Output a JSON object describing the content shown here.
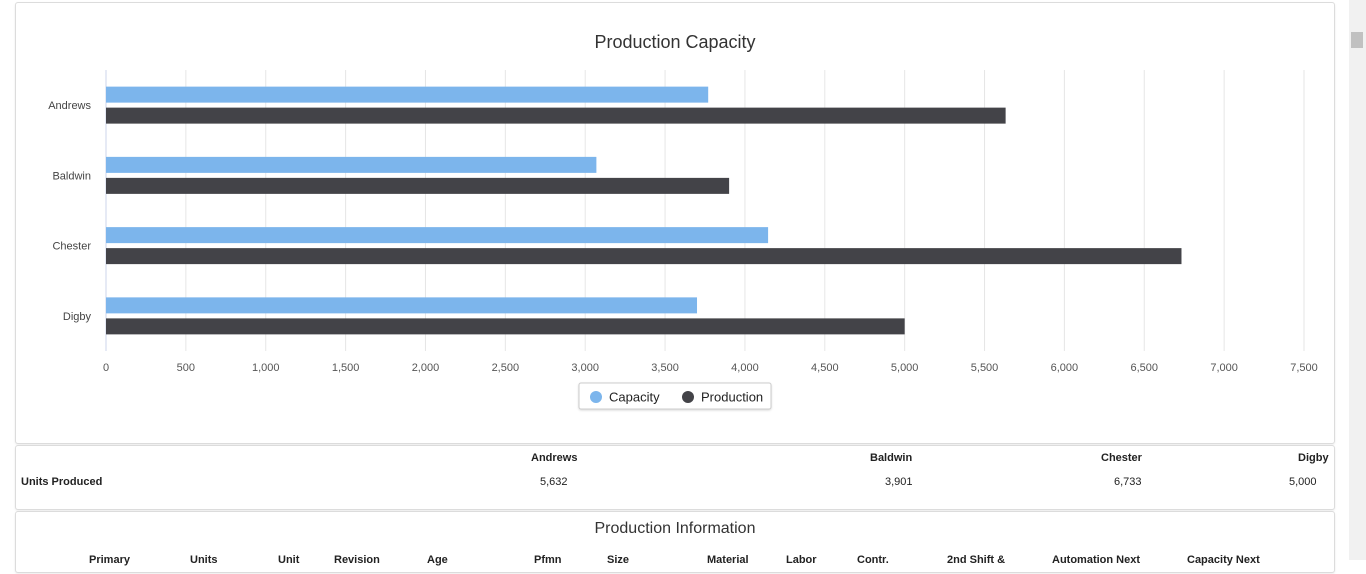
{
  "chart_data": {
    "type": "bar",
    "orientation": "horizontal",
    "title": "Production Capacity",
    "categories": [
      "Andrews",
      "Baldwin",
      "Chester",
      "Digby"
    ],
    "series": [
      {
        "name": "Capacity",
        "values": [
          3770,
          3070,
          4145,
          3700
        ],
        "color": "#7cb5ec"
      },
      {
        "name": "Production",
        "values": [
          5632,
          3901,
          6733,
          5000
        ],
        "color": "#434348"
      }
    ],
    "xlim": [
      0,
      7500
    ],
    "xticks": [
      0,
      500,
      1000,
      1500,
      2000,
      2500,
      3000,
      3500,
      4000,
      4500,
      5000,
      5500,
      6000,
      6500,
      7000,
      7500
    ],
    "xtick_labels": [
      "0",
      "500",
      "1,000",
      "1,500",
      "2,000",
      "2,500",
      "3,000",
      "3,500",
      "4,000",
      "4,500",
      "5,000",
      "5,500",
      "6,000",
      "6,500",
      "7,000",
      "7,500"
    ],
    "grid": true,
    "legend": "bottom-center"
  },
  "units_table": {
    "row_label": "Units Produced",
    "columns": [
      {
        "name": "Andrews",
        "value": "5,632"
      },
      {
        "name": "Baldwin",
        "value": "3,901"
      },
      {
        "name": "Chester",
        "value": "6,733"
      },
      {
        "name": "Digby",
        "value": "5,000"
      }
    ]
  },
  "production_info": {
    "title": "Production Information",
    "columns": [
      "Primary",
      "Units",
      "Unit",
      "Revision",
      "Age",
      "Pfmn",
      "Size",
      "Material",
      "Labor",
      "Contr.",
      "2nd Shift &",
      "Automation Next",
      "Capacity Next"
    ]
  }
}
